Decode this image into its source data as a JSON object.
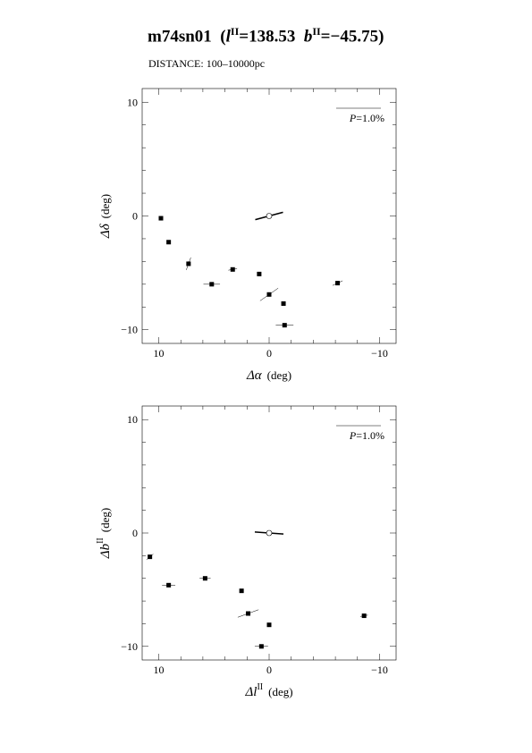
{
  "header": {
    "object": "m74sn01",
    "l_label": "l",
    "b_label": "b",
    "gal_sup": "II",
    "l_value": "=138.53",
    "b_value": "=−45.75",
    "distance": "DISTANCE:  100–10000pc"
  },
  "chart_data": [
    {
      "type": "scatter",
      "xlabel_symbol": "Δα",
      "xlabel_sup": "",
      "xlabel_unit": "(deg)",
      "ylabel_symbol": "Δδ",
      "ylabel_sup": "",
      "ylabel_unit": "(deg)",
      "xlim": [
        11.5,
        -11.5
      ],
      "ylim": [
        -11.2,
        11.2
      ],
      "xticks": [
        {
          "v": 10,
          "label": "10"
        },
        {
          "v": 0,
          "label": "0"
        },
        {
          "v": -10,
          "label": "−10"
        }
      ],
      "yticks": [
        {
          "v": 10,
          "label": "10"
        },
        {
          "v": 0,
          "label": "0"
        },
        {
          "v": -10,
          "label": "−10"
        }
      ],
      "legend": {
        "label_italic": "P",
        "label_rest": "=1.0%",
        "position": "top-right"
      },
      "center": {
        "x": 0,
        "y": 0,
        "pol_angle_deg": 15,
        "pol_length_deg": 2.6
      },
      "points": [
        {
          "x": 9.8,
          "y": -0.2,
          "pol_angle_deg": 0,
          "pol_length_deg": 0
        },
        {
          "x": 9.1,
          "y": -2.3,
          "pol_angle_deg": 0,
          "pol_length_deg": 0
        },
        {
          "x": 7.3,
          "y": -4.2,
          "pol_angle_deg": 70,
          "pol_length_deg": 1.2
        },
        {
          "x": 5.2,
          "y": -6.0,
          "pol_angle_deg": 0,
          "pol_length_deg": 1.5
        },
        {
          "x": 3.3,
          "y": -4.7,
          "pol_angle_deg": 10,
          "pol_length_deg": 0.8
        },
        {
          "x": 0.9,
          "y": -5.1,
          "pol_angle_deg": 0,
          "pol_length_deg": 0
        },
        {
          "x": 0.0,
          "y": -6.9,
          "pol_angle_deg": 35,
          "pol_length_deg": 2.0
        },
        {
          "x": -1.3,
          "y": -7.7,
          "pol_angle_deg": 0,
          "pol_length_deg": 0
        },
        {
          "x": -1.4,
          "y": -9.6,
          "pol_angle_deg": 0,
          "pol_length_deg": 1.6
        },
        {
          "x": -6.2,
          "y": -5.9,
          "pol_angle_deg": 25,
          "pol_length_deg": 1.0
        }
      ]
    },
    {
      "type": "scatter",
      "xlabel_symbol": "Δl",
      "xlabel_sup": "II",
      "xlabel_unit": "(deg)",
      "ylabel_symbol": "Δb",
      "ylabel_sup": "II",
      "ylabel_unit": "(deg)",
      "xlim": [
        11.5,
        -11.5
      ],
      "ylim": [
        -11.2,
        11.2
      ],
      "xticks": [
        {
          "v": 10,
          "label": "10"
        },
        {
          "v": 0,
          "label": "0"
        },
        {
          "v": -10,
          "label": "−10"
        }
      ],
      "yticks": [
        {
          "v": 10,
          "label": "10"
        },
        {
          "v": 0,
          "label": "0"
        },
        {
          "v": -10,
          "label": "−10"
        }
      ],
      "legend": {
        "label_italic": "P",
        "label_rest": "=1.0%",
        "position": "top-right"
      },
      "center": {
        "x": 0,
        "y": 0,
        "pol_angle_deg": -4,
        "pol_length_deg": 2.6
      },
      "points": [
        {
          "x": 10.8,
          "y": -2.1,
          "pol_angle_deg": 40,
          "pol_length_deg": 0.8
        },
        {
          "x": 9.1,
          "y": -4.6,
          "pol_angle_deg": 0,
          "pol_length_deg": 1.2
        },
        {
          "x": 5.8,
          "y": -4.0,
          "pol_angle_deg": 0,
          "pol_length_deg": 1.0
        },
        {
          "x": 2.5,
          "y": -5.1,
          "pol_angle_deg": 0,
          "pol_length_deg": 0
        },
        {
          "x": 1.9,
          "y": -7.1,
          "pol_angle_deg": 20,
          "pol_length_deg": 2.0
        },
        {
          "x": 0.0,
          "y": -8.1,
          "pol_angle_deg": 0,
          "pol_length_deg": 0
        },
        {
          "x": 0.7,
          "y": -10.0,
          "pol_angle_deg": 0,
          "pol_length_deg": 1.2
        },
        {
          "x": -8.6,
          "y": -7.3,
          "pol_angle_deg": 10,
          "pol_length_deg": 0.7
        }
      ]
    }
  ]
}
